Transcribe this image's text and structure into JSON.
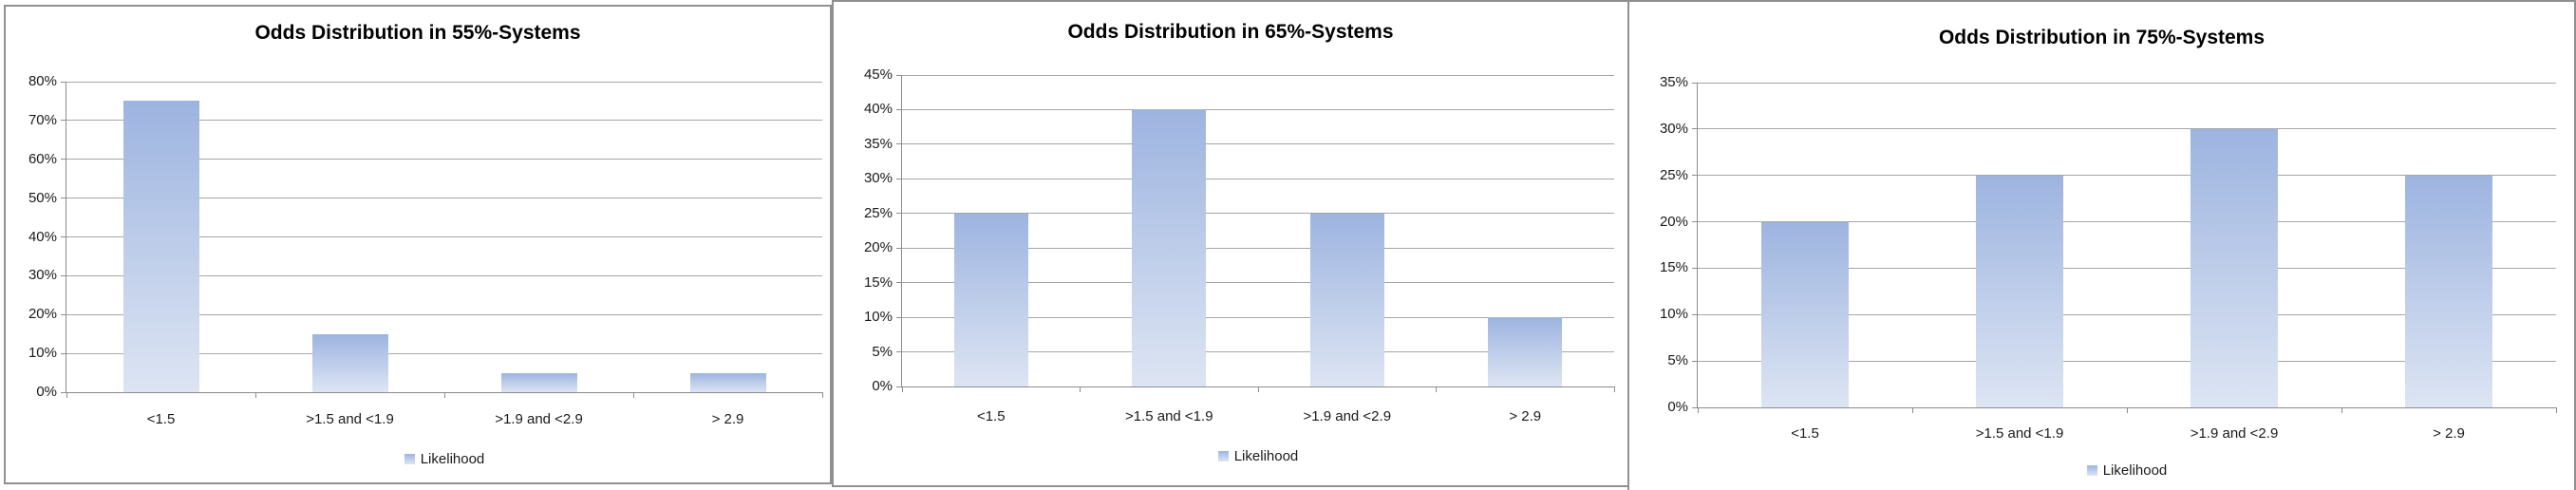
{
  "colors": {
    "bar_gradient_top": "#9db4e0",
    "bar_gradient_bottom": "#dde5f3",
    "gridline": "#a6a6a6",
    "axis": "#8c8c8c",
    "panel_border": "#909090",
    "title_text": "#000000",
    "label_text": "#1a1a1a"
  },
  "legend": {
    "label": "Likelihood",
    "position": "bottom"
  },
  "chart_data": [
    {
      "type": "bar",
      "title": "Odds Distribution in 55%-Systems",
      "categories": [
        "<1.5",
        ">1.5 and <1.9",
        ">1.9 and <2.9",
        "> 2.9"
      ],
      "series": [
        {
          "name": "Likelihood",
          "values": [
            75,
            15,
            5,
            5
          ]
        }
      ],
      "value_unit": "%",
      "xlabel": "",
      "ylabel": "",
      "ylim": [
        0,
        80
      ],
      "ytick_step": 10,
      "ytick_labels": [
        "80%",
        "70%",
        "60%",
        "50%",
        "40%",
        "30%",
        "20%",
        "10%",
        "0%"
      ],
      "grid": true,
      "legend_position": "bottom"
    },
    {
      "type": "bar",
      "title": "Odds Distribution in 65%-Systems",
      "categories": [
        "<1.5",
        ">1.5 and <1.9",
        ">1.9 and <2.9",
        "> 2.9"
      ],
      "series": [
        {
          "name": "Likelihood",
          "values": [
            25,
            40,
            25,
            10
          ]
        }
      ],
      "value_unit": "%",
      "xlabel": "",
      "ylabel": "",
      "ylim": [
        0,
        45
      ],
      "ytick_step": 5,
      "ytick_labels": [
        "45%",
        "40%",
        "35%",
        "30%",
        "25%",
        "20%",
        "15%",
        "10%",
        "5%",
        "0%"
      ],
      "grid": true,
      "legend_position": "bottom"
    },
    {
      "type": "bar",
      "title": "Odds Distribution in 75%-Systems",
      "categories": [
        "<1.5",
        ">1.5 and <1.9",
        ">1.9 and <2.9",
        "> 2.9"
      ],
      "series": [
        {
          "name": "Likelihood",
          "values": [
            20,
            25,
            30,
            25
          ]
        }
      ],
      "value_unit": "%",
      "xlabel": "",
      "ylabel": "",
      "ylim": [
        0,
        35
      ],
      "ytick_step": 5,
      "ytick_labels": [
        "35%",
        "30%",
        "25%",
        "20%",
        "15%",
        "10%",
        "5%",
        "0%"
      ],
      "grid": true,
      "legend_position": "bottom"
    }
  ]
}
